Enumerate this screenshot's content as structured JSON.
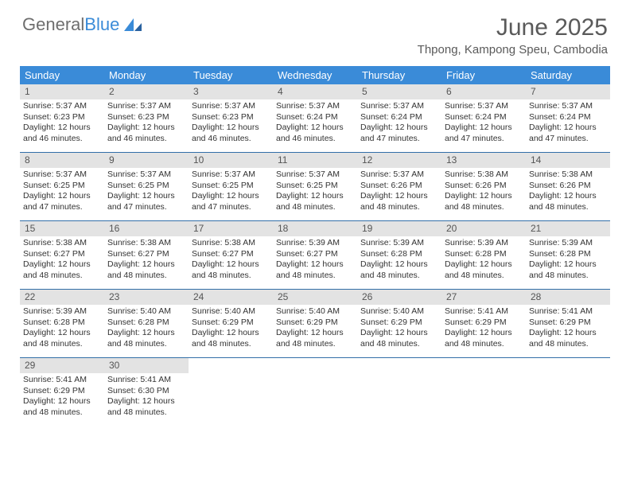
{
  "logo": {
    "word1": "General",
    "word2": "Blue"
  },
  "title": "June 2025",
  "subtitle": "Thpong, Kampong Speu, Cambodia",
  "colors": {
    "header_bg": "#3a8bd8",
    "header_fg": "#ffffff",
    "daynum_bg": "#e3e3e3",
    "rule": "#326fa8",
    "logo_grey": "#6e6e6e",
    "logo_blue": "#3a8bd8",
    "text": "#333333"
  },
  "day_labels": [
    "Sunday",
    "Monday",
    "Tuesday",
    "Wednesday",
    "Thursday",
    "Friday",
    "Saturday"
  ],
  "weeks": [
    [
      {
        "n": "1",
        "sr": "Sunrise: 5:37 AM",
        "ss": "Sunset: 6:23 PM",
        "dl": "Daylight: 12 hours and 46 minutes."
      },
      {
        "n": "2",
        "sr": "Sunrise: 5:37 AM",
        "ss": "Sunset: 6:23 PM",
        "dl": "Daylight: 12 hours and 46 minutes."
      },
      {
        "n": "3",
        "sr": "Sunrise: 5:37 AM",
        "ss": "Sunset: 6:23 PM",
        "dl": "Daylight: 12 hours and 46 minutes."
      },
      {
        "n": "4",
        "sr": "Sunrise: 5:37 AM",
        "ss": "Sunset: 6:24 PM",
        "dl": "Daylight: 12 hours and 46 minutes."
      },
      {
        "n": "5",
        "sr": "Sunrise: 5:37 AM",
        "ss": "Sunset: 6:24 PM",
        "dl": "Daylight: 12 hours and 47 minutes."
      },
      {
        "n": "6",
        "sr": "Sunrise: 5:37 AM",
        "ss": "Sunset: 6:24 PM",
        "dl": "Daylight: 12 hours and 47 minutes."
      },
      {
        "n": "7",
        "sr": "Sunrise: 5:37 AM",
        "ss": "Sunset: 6:24 PM",
        "dl": "Daylight: 12 hours and 47 minutes."
      }
    ],
    [
      {
        "n": "8",
        "sr": "Sunrise: 5:37 AM",
        "ss": "Sunset: 6:25 PM",
        "dl": "Daylight: 12 hours and 47 minutes."
      },
      {
        "n": "9",
        "sr": "Sunrise: 5:37 AM",
        "ss": "Sunset: 6:25 PM",
        "dl": "Daylight: 12 hours and 47 minutes."
      },
      {
        "n": "10",
        "sr": "Sunrise: 5:37 AM",
        "ss": "Sunset: 6:25 PM",
        "dl": "Daylight: 12 hours and 47 minutes."
      },
      {
        "n": "11",
        "sr": "Sunrise: 5:37 AM",
        "ss": "Sunset: 6:25 PM",
        "dl": "Daylight: 12 hours and 48 minutes."
      },
      {
        "n": "12",
        "sr": "Sunrise: 5:37 AM",
        "ss": "Sunset: 6:26 PM",
        "dl": "Daylight: 12 hours and 48 minutes."
      },
      {
        "n": "13",
        "sr": "Sunrise: 5:38 AM",
        "ss": "Sunset: 6:26 PM",
        "dl": "Daylight: 12 hours and 48 minutes."
      },
      {
        "n": "14",
        "sr": "Sunrise: 5:38 AM",
        "ss": "Sunset: 6:26 PM",
        "dl": "Daylight: 12 hours and 48 minutes."
      }
    ],
    [
      {
        "n": "15",
        "sr": "Sunrise: 5:38 AM",
        "ss": "Sunset: 6:27 PM",
        "dl": "Daylight: 12 hours and 48 minutes."
      },
      {
        "n": "16",
        "sr": "Sunrise: 5:38 AM",
        "ss": "Sunset: 6:27 PM",
        "dl": "Daylight: 12 hours and 48 minutes."
      },
      {
        "n": "17",
        "sr": "Sunrise: 5:38 AM",
        "ss": "Sunset: 6:27 PM",
        "dl": "Daylight: 12 hours and 48 minutes."
      },
      {
        "n": "18",
        "sr": "Sunrise: 5:39 AM",
        "ss": "Sunset: 6:27 PM",
        "dl": "Daylight: 12 hours and 48 minutes."
      },
      {
        "n": "19",
        "sr": "Sunrise: 5:39 AM",
        "ss": "Sunset: 6:28 PM",
        "dl": "Daylight: 12 hours and 48 minutes."
      },
      {
        "n": "20",
        "sr": "Sunrise: 5:39 AM",
        "ss": "Sunset: 6:28 PM",
        "dl": "Daylight: 12 hours and 48 minutes."
      },
      {
        "n": "21",
        "sr": "Sunrise: 5:39 AM",
        "ss": "Sunset: 6:28 PM",
        "dl": "Daylight: 12 hours and 48 minutes."
      }
    ],
    [
      {
        "n": "22",
        "sr": "Sunrise: 5:39 AM",
        "ss": "Sunset: 6:28 PM",
        "dl": "Daylight: 12 hours and 48 minutes."
      },
      {
        "n": "23",
        "sr": "Sunrise: 5:40 AM",
        "ss": "Sunset: 6:28 PM",
        "dl": "Daylight: 12 hours and 48 minutes."
      },
      {
        "n": "24",
        "sr": "Sunrise: 5:40 AM",
        "ss": "Sunset: 6:29 PM",
        "dl": "Daylight: 12 hours and 48 minutes."
      },
      {
        "n": "25",
        "sr": "Sunrise: 5:40 AM",
        "ss": "Sunset: 6:29 PM",
        "dl": "Daylight: 12 hours and 48 minutes."
      },
      {
        "n": "26",
        "sr": "Sunrise: 5:40 AM",
        "ss": "Sunset: 6:29 PM",
        "dl": "Daylight: 12 hours and 48 minutes."
      },
      {
        "n": "27",
        "sr": "Sunrise: 5:41 AM",
        "ss": "Sunset: 6:29 PM",
        "dl": "Daylight: 12 hours and 48 minutes."
      },
      {
        "n": "28",
        "sr": "Sunrise: 5:41 AM",
        "ss": "Sunset: 6:29 PM",
        "dl": "Daylight: 12 hours and 48 minutes."
      }
    ],
    [
      {
        "n": "29",
        "sr": "Sunrise: 5:41 AM",
        "ss": "Sunset: 6:29 PM",
        "dl": "Daylight: 12 hours and 48 minutes."
      },
      {
        "n": "30",
        "sr": "Sunrise: 5:41 AM",
        "ss": "Sunset: 6:30 PM",
        "dl": "Daylight: 12 hours and 48 minutes."
      },
      {
        "n": "",
        "sr": "",
        "ss": "",
        "dl": ""
      },
      {
        "n": "",
        "sr": "",
        "ss": "",
        "dl": ""
      },
      {
        "n": "",
        "sr": "",
        "ss": "",
        "dl": ""
      },
      {
        "n": "",
        "sr": "",
        "ss": "",
        "dl": ""
      },
      {
        "n": "",
        "sr": "",
        "ss": "",
        "dl": ""
      }
    ]
  ]
}
